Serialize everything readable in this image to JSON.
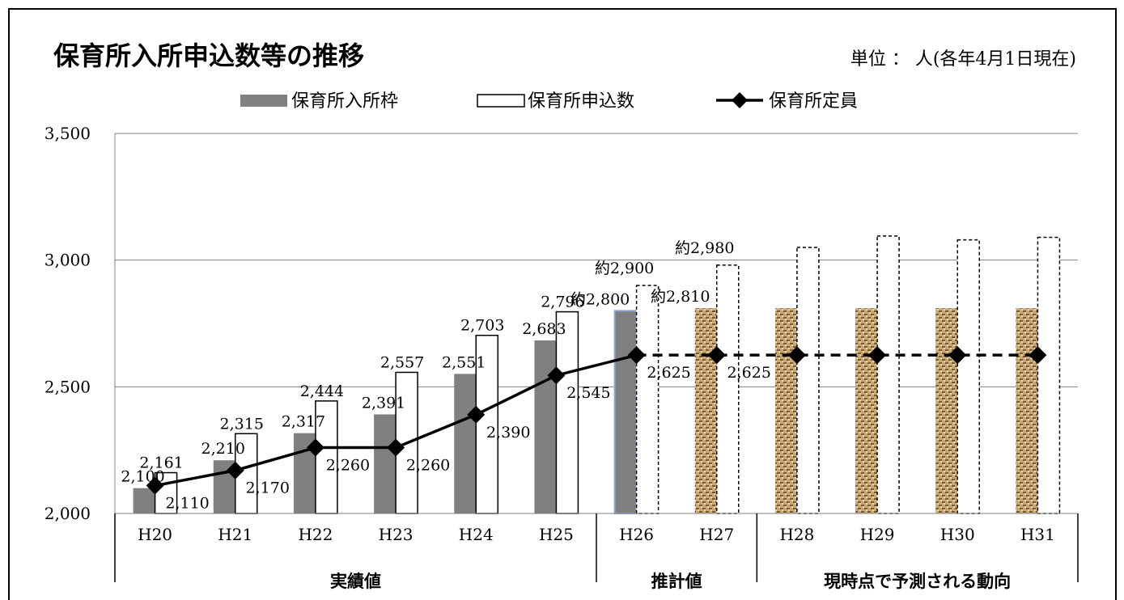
{
  "colors": {
    "frame": "#000000",
    "actual_bar": "#808080",
    "estimate_bar": "#7f7f7f",
    "estimate_bar_edge": "#8fa8d0",
    "forecast_bar_base": "#c9a878",
    "forecast_bar_dark": "#7a5a30",
    "line": "#000000",
    "grid": "#808080"
  },
  "chart_data": {
    "type": "bar",
    "title": "保育所入所申込数等の推移",
    "unit_note": "単位 ： 人(各年4月1日現在)",
    "categories": [
      "H20",
      "H21",
      "H22",
      "H23",
      "H24",
      "H25",
      "H26",
      "H27",
      "H28",
      "H29",
      "H30",
      "H31"
    ],
    "ylim": [
      2000,
      3500
    ],
    "yticks": [
      "2,000",
      "2,500",
      "3,000",
      "3,500"
    ],
    "ytick_values": [
      2000,
      2500,
      3000,
      3500
    ],
    "grid": true,
    "legend_position": "top",
    "legend": [
      "保育所入所枠",
      "保育所申込数",
      "保育所定員"
    ],
    "series": [
      {
        "name": "保育所入所枠",
        "kind": "bar",
        "values": [
          2100,
          2210,
          2317,
          2391,
          2551,
          2683,
          2800,
          2810,
          2810,
          2810,
          2810,
          2810
        ],
        "labels": [
          "2,100",
          "2,210",
          "2,317",
          "2,391",
          "2,551",
          "2,683",
          "約2,800",
          "約2,810",
          "",
          "",
          "",
          ""
        ]
      },
      {
        "name": "保育所申込数",
        "kind": "bar",
        "values": [
          2161,
          2315,
          2444,
          2557,
          2703,
          2796,
          2900,
          2980,
          3050,
          3095,
          3080,
          3090
        ],
        "labels": [
          "2,161",
          "2,315",
          "2,444",
          "2,557",
          "2,703",
          "2,796",
          "約2,900",
          "約2,980",
          "",
          "",
          "",
          ""
        ]
      },
      {
        "name": "保育所定員",
        "kind": "line",
        "values": [
          2110,
          2170,
          2260,
          2260,
          2390,
          2545,
          2625,
          2625,
          2625,
          2625,
          2625,
          2625
        ],
        "labels": [
          "2,110",
          "2,170",
          "2,260",
          "2,260",
          "2,390",
          "2,545",
          "2,625",
          "2,625",
          "",
          "",
          "",
          ""
        ]
      }
    ],
    "groups": [
      {
        "label": "実績値",
        "categories": [
          "H20",
          "H21",
          "H22",
          "H23",
          "H24",
          "H25"
        ]
      },
      {
        "label": "推計値",
        "categories": [
          "H26",
          "H27"
        ]
      },
      {
        "label": "現時点で予測される動向",
        "categories": [
          "H28",
          "H29",
          "H30",
          "H31"
        ]
      }
    ]
  }
}
